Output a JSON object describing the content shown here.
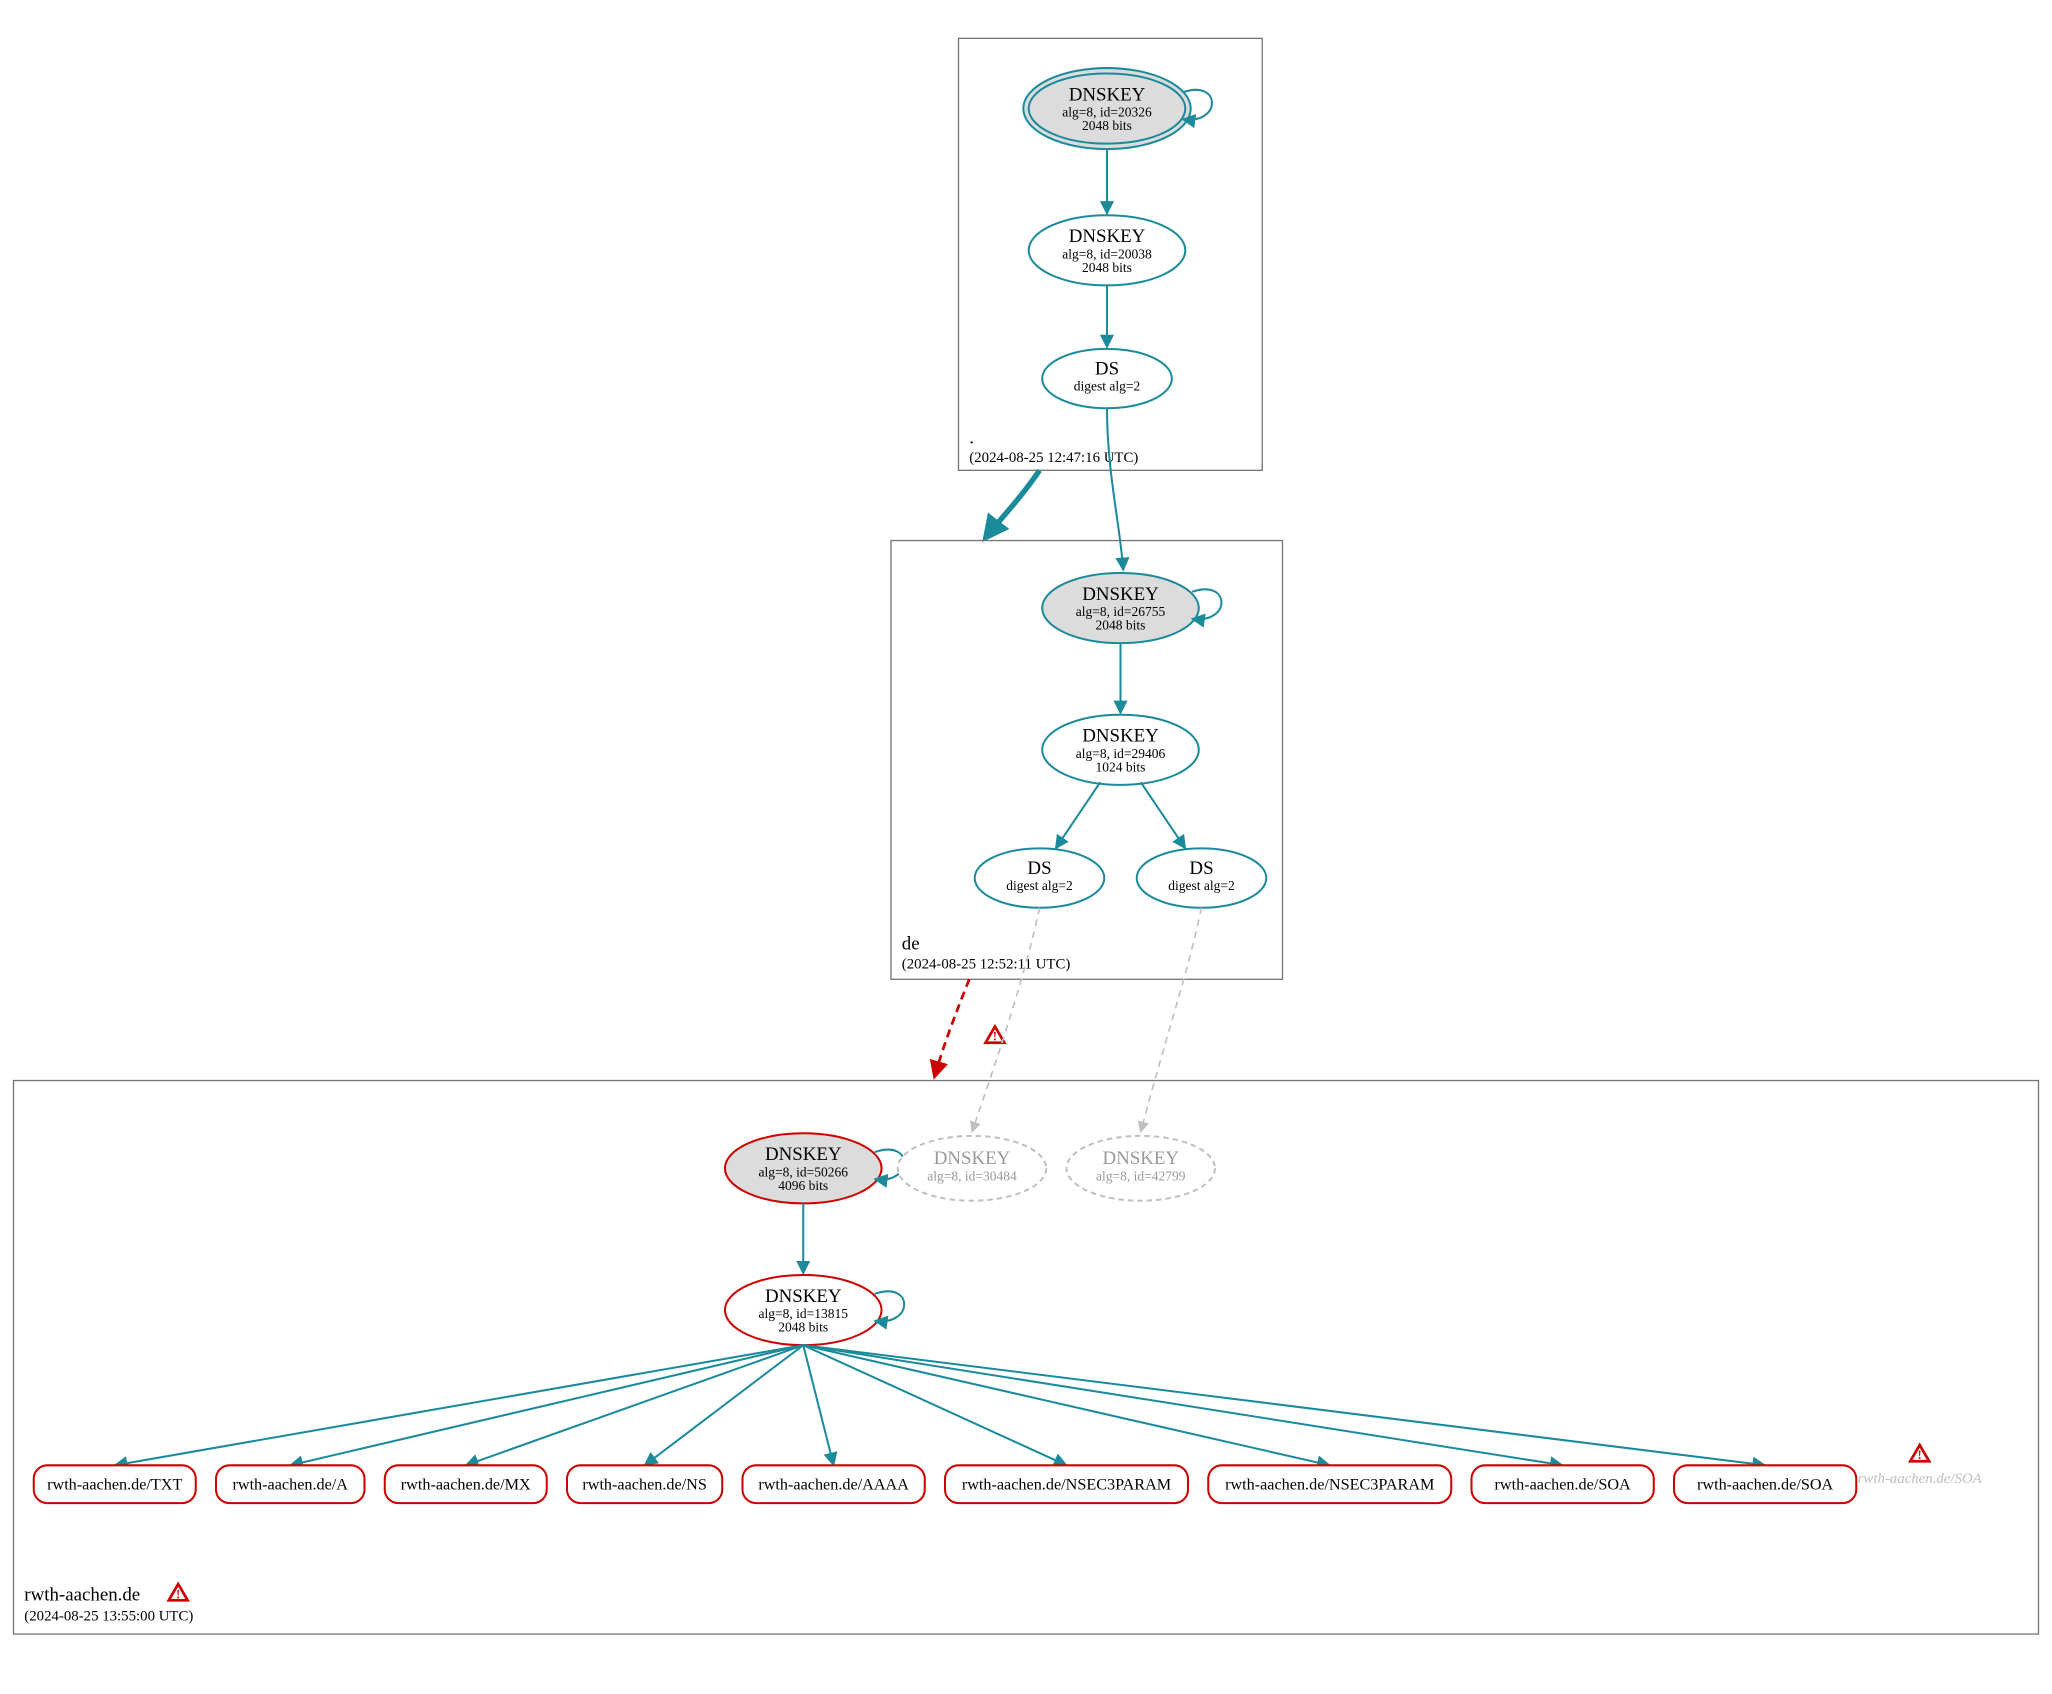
{
  "colors": {
    "teal": "#1b8a9b",
    "red": "#cc0000",
    "grey_fill": "#dcdcdc",
    "grey_light": "#bfbfbf",
    "grey_stroke": "#777777",
    "black": "#000000",
    "white": "#ffffff"
  },
  "zones": {
    "root": {
      "label": ".",
      "timestamp": "(2024-08-25 12:47:16 UTC)",
      "nodes": {
        "ksk": {
          "title": "DNSKEY",
          "line2": "alg=8, id=20326",
          "line3": "2048 bits"
        },
        "zsk": {
          "title": "DNSKEY",
          "line2": "alg=8, id=20038",
          "line3": "2048 bits"
        },
        "ds": {
          "title": "DS",
          "line2": "digest alg=2"
        }
      }
    },
    "de": {
      "label": "de",
      "timestamp": "(2024-08-25 12:52:11 UTC)",
      "nodes": {
        "ksk": {
          "title": "DNSKEY",
          "line2": "alg=8, id=26755",
          "line3": "2048 bits"
        },
        "zsk": {
          "title": "DNSKEY",
          "line2": "alg=8, id=29406",
          "line3": "1024 bits"
        },
        "ds1": {
          "title": "DS",
          "line2": "digest alg=2"
        },
        "ds2": {
          "title": "DS",
          "line2": "digest alg=2"
        }
      }
    },
    "rwth": {
      "label": "rwth-aachen.de",
      "timestamp": "(2024-08-25 13:55:00 UTC)",
      "nodes": {
        "ksk": {
          "title": "DNSKEY",
          "line2": "alg=8, id=50266",
          "line3": "4096 bits"
        },
        "ghost1": {
          "title": "DNSKEY",
          "line2": "alg=8, id=30484"
        },
        "ghost2": {
          "title": "DNSKEY",
          "line2": "alg=8, id=42799"
        },
        "zsk": {
          "title": "DNSKEY",
          "line2": "alg=8, id=13815",
          "line3": "2048 bits"
        }
      },
      "rrsets": [
        "rwth-aachen.de/TXT",
        "rwth-aachen.de/A",
        "rwth-aachen.de/MX",
        "rwth-aachen.de/NS",
        "rwth-aachen.de/AAAA",
        "rwth-aachen.de/NSEC3PARAM",
        "rwth-aachen.de/NSEC3PARAM",
        "rwth-aachen.de/SOA",
        "rwth-aachen.de/SOA"
      ],
      "ghost_rrset": "rwth-aachen.de/SOA"
    }
  }
}
